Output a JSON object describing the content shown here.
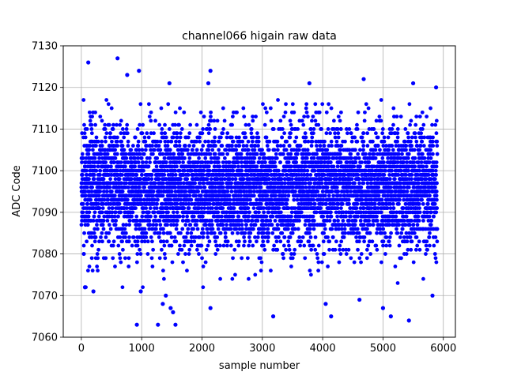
{
  "chart_data": {
    "type": "scatter",
    "title": "channel066 higain raw data",
    "xlabel": "sample number",
    "ylabel": "ADC Code",
    "xlim": [
      -300,
      6200
    ],
    "ylim": [
      7060,
      7130
    ],
    "x_ticks": [
      0,
      1000,
      2000,
      3000,
      4000,
      5000,
      6000
    ],
    "y_ticks": [
      7060,
      7070,
      7080,
      7090,
      7100,
      7110,
      7120,
      7130
    ],
    "grid": true,
    "marker_color": "#0000ff",
    "series": [
      {
        "n_points": 5900,
        "x_range": [
          0,
          5900
        ],
        "typical_center": 7096,
        "typical_range": [
          7071,
          7117
        ],
        "outlier_points": [
          [
            115,
            7126
          ],
          [
            600,
            7127
          ],
          [
            760,
            7123
          ],
          [
            955,
            7124
          ],
          [
            2105,
            7121
          ],
          [
            2140,
            7124
          ],
          [
            1460,
            7121
          ],
          [
            3780,
            7121
          ],
          [
            4680,
            7122
          ],
          [
            5500,
            7121
          ],
          [
            5880,
            7120
          ],
          [
            920,
            7063
          ],
          [
            1270,
            7063
          ],
          [
            1560,
            7063
          ],
          [
            1520,
            7066
          ],
          [
            1480,
            7067
          ],
          [
            1350,
            7068
          ],
          [
            1400,
            7070
          ],
          [
            3180,
            7065
          ],
          [
            4140,
            7065
          ],
          [
            5430,
            7064
          ],
          [
            2140,
            7067
          ],
          [
            4050,
            7068
          ],
          [
            4610,
            7069
          ],
          [
            5000,
            7067
          ],
          [
            5130,
            7065
          ],
          [
            200,
            7071
          ],
          [
            985,
            7071
          ],
          [
            5820,
            7070
          ],
          [
            60,
            7072
          ]
        ]
      }
    ]
  }
}
